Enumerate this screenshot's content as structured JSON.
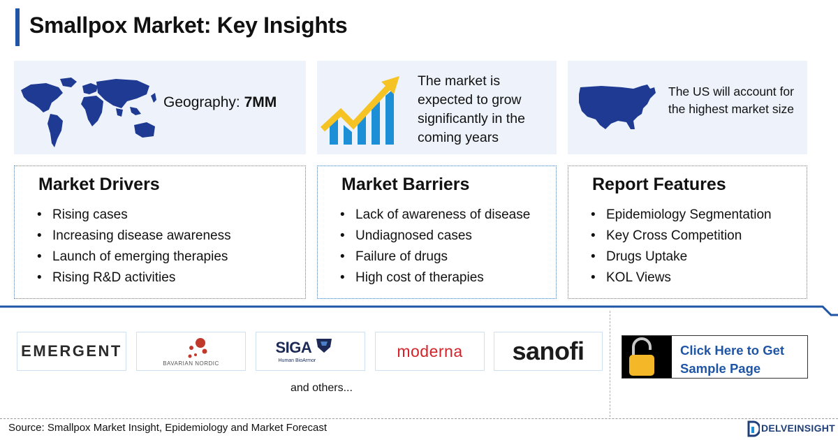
{
  "header": {
    "title": "Smallpox Market: Key Insights"
  },
  "insights": {
    "geography_label": "Geography: ",
    "geography_value": "7MM",
    "growth_text": "The market is expected to grow significantly in the coming years",
    "us_text": "The US will account for the highest market size"
  },
  "panels": {
    "drivers": {
      "title": "Market Drivers",
      "items": [
        "Rising cases",
        "Increasing disease awareness",
        "Launch of emerging therapies",
        "Rising R&D activities"
      ]
    },
    "barriers": {
      "title": "Market Barriers",
      "items": [
        "Lack of awareness of disease",
        "Undiagnosed cases",
        "Failure of drugs",
        "High cost of therapies"
      ]
    },
    "features": {
      "title": "Report Features",
      "items": [
        "Epidemiology Segmentation",
        "Key Cross Competition",
        "Drugs Uptake",
        "KOL Views"
      ]
    }
  },
  "companies": {
    "emergent": "EMERGENT",
    "bavarian_nordic": "BAVARIAN NORDIC",
    "siga": "SIGA",
    "siga_tagline": "Human BioArmor",
    "moderna": "moderna",
    "sanofi": "sanofi",
    "others": "and others..."
  },
  "cta": {
    "label": "Click Here to Get Sample Page"
  },
  "footer": {
    "source": "Source: Smallpox Market Insight, Epidemiology and Market Forecast",
    "brand": "DELVEINSIGHT"
  },
  "colors": {
    "accent_blue": "#1f55a5",
    "map_blue": "#1f3a93",
    "growth_arrow": "#f6c324",
    "growth_bars": "#1c8fd6",
    "lock_gold": "#f4b728",
    "moderna_red": "#d2232a",
    "bn_red": "#c0392b"
  },
  "icons": {
    "world_map": "world-map-icon",
    "growth": "growth-chart-icon",
    "us_map": "us-map-icon",
    "lock": "unlocked-padlock-icon"
  }
}
